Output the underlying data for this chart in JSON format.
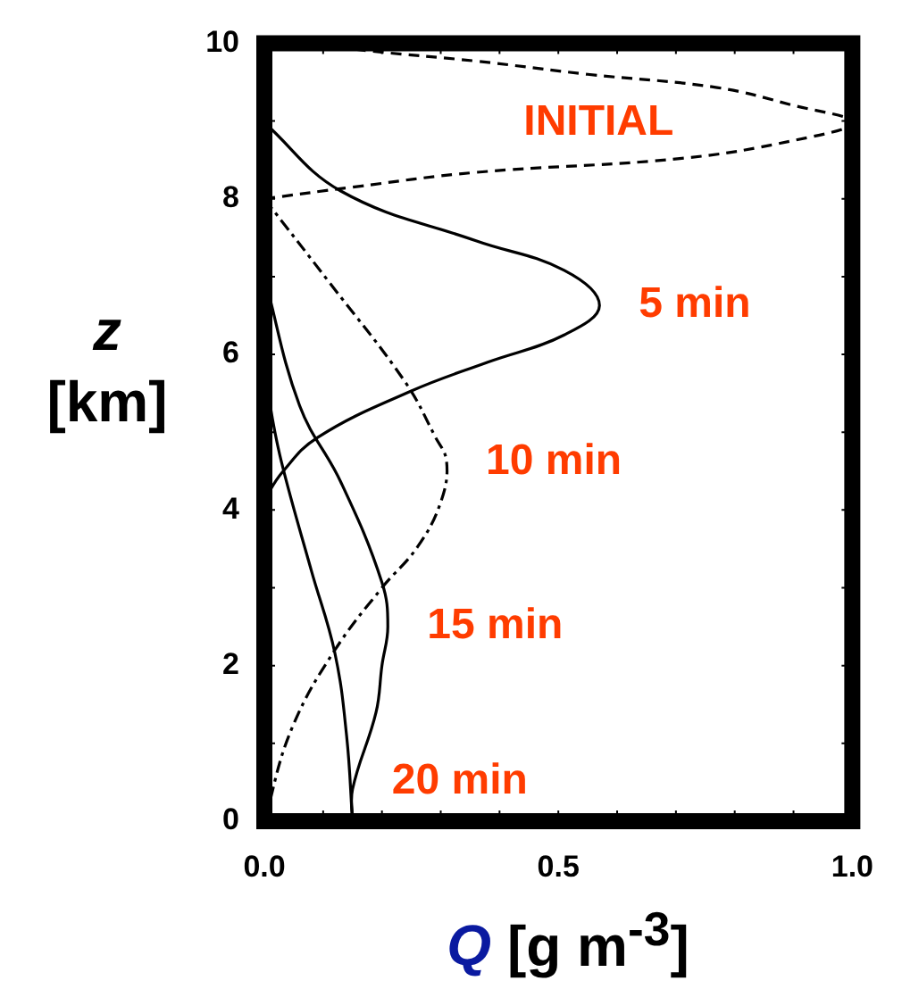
{
  "chart_data": {
    "type": "line",
    "xlabel": "Q [g m$^{-3}$]",
    "ylabel": "z [km]",
    "xlim": [
      0,
      1
    ],
    "ylim": [
      0,
      10
    ],
    "xticks": [
      {
        "value": 0,
        "label": "0.0"
      },
      {
        "value": 0.1,
        "label": null
      },
      {
        "value": 0.2,
        "label": null
      },
      {
        "value": 0.3,
        "label": null
      },
      {
        "value": 0.4,
        "label": null
      },
      {
        "value": 0.5,
        "label": "0.5"
      },
      {
        "value": 0.6,
        "label": null
      },
      {
        "value": 0.7,
        "label": null
      },
      {
        "value": 0.8,
        "label": null
      },
      {
        "value": 0.9,
        "label": null
      },
      {
        "value": 1,
        "label": "1.0"
      }
    ],
    "yticks": [
      0,
      {
        "value": 1,
        "label": null
      },
      2,
      {
        "value": 3,
        "label": null
      },
      4,
      {
        "value": 5,
        "label": null
      },
      6,
      {
        "value": 7,
        "label": null
      },
      8,
      {
        "value": 9,
        "label": null
      },
      10
    ],
    "grid": false,
    "marker": "none",
    "series": [
      {
        "name": "INITIAL",
        "color": "#000000",
        "line_style": "dashed",
        "x": [
          0,
          0.15,
          0.36,
          0.71,
          0.9,
          1.0,
          0.9,
          0.77,
          0.55,
          0.36,
          0.18,
          0.08
        ],
        "values": [
          8.0,
          8.15,
          8.34,
          8.52,
          8.75,
          8.98,
          9.2,
          9.43,
          9.6,
          9.77,
          9.9,
          10
        ]
      },
      {
        "name": "5 min",
        "color": "#000000",
        "line_style": "solid",
        "x": [
          0,
          0.13,
          0.36,
          0.51,
          0.57,
          0.51,
          0.38,
          0.25,
          0.09,
          0.03,
          0
        ],
        "values": [
          8.98,
          8.1,
          7.46,
          7.08,
          6.63,
          6.25,
          5.9,
          5.53,
          4.93,
          4.48,
          4.13
        ]
      },
      {
        "name": "10 min",
        "color": "#000000",
        "line_style": "dashdot",
        "x": [
          0,
          0.11,
          0.24,
          0.29,
          0.31,
          0.3,
          0.26,
          0.2,
          0.12,
          0.05,
          0.01,
          0.01
        ],
        "values": [
          8.0,
          6.93,
          5.64,
          4.95,
          4.62,
          4.1,
          3.52,
          3.0,
          2.2,
          1.25,
          0.27,
          0
        ]
      },
      {
        "name": "15 min",
        "color": "#000000",
        "line_style": "solid",
        "x": [
          0,
          0.06,
          0.13,
          0.2,
          0.21,
          0.2,
          0.19,
          0.15,
          0.15
        ],
        "values": [
          7.0,
          5.34,
          4.36,
          3.07,
          2.5,
          2.0,
          1.4,
          0.41,
          0
        ]
      },
      {
        "name": "20 min",
        "color": "#000000",
        "line_style": "solid",
        "x": [
          0,
          0.01,
          0.03,
          0.08,
          0.12,
          0.14,
          0.15
        ],
        "values": [
          6.0,
          5.34,
          4.59,
          3.22,
          2.16,
          1.09,
          0
        ]
      }
    ]
  }
}
